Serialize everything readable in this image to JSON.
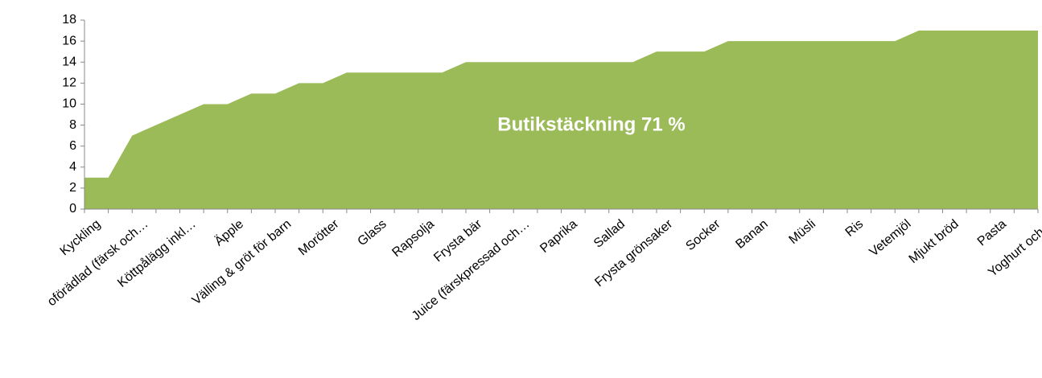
{
  "chart_data": {
    "type": "area",
    "annotation": "Butikstäckning 71 %",
    "categories": [
      "Kyckling",
      null,
      "oförädlad (färsk och…",
      null,
      "Köttpålägg inkl…",
      null,
      "Äpple",
      null,
      "Välling & gröt för barn",
      null,
      "Morötter",
      null,
      "Glass",
      null,
      "Rapsolja",
      null,
      "Frysta bär",
      null,
      "Juice (färskpressad och…",
      null,
      "Paprika",
      null,
      "Sallad",
      null,
      "Frysta grönsaker",
      null,
      "Socker",
      null,
      "Banan",
      null,
      "Müsli",
      null,
      "Ris",
      null,
      "Vetemjöl",
      null,
      "Mjukt bröd",
      null,
      "Pasta",
      null,
      "Yoghurt och fil"
    ],
    "values": [
      3,
      3,
      7,
      8,
      9,
      10,
      10,
      11,
      11,
      12,
      12,
      13,
      13,
      13,
      13,
      13,
      14,
      14,
      14,
      14,
      14,
      14,
      14,
      14,
      15,
      15,
      15,
      16,
      16,
      16,
      16,
      16,
      16,
      16,
      16,
      17,
      17,
      17,
      17,
      17,
      17
    ],
    "color": "#9bbb59",
    "ylim": [
      0,
      18
    ],
    "yticks": [
      0,
      2,
      4,
      6,
      8,
      10,
      12,
      14,
      16,
      18
    ],
    "grid": false
  }
}
